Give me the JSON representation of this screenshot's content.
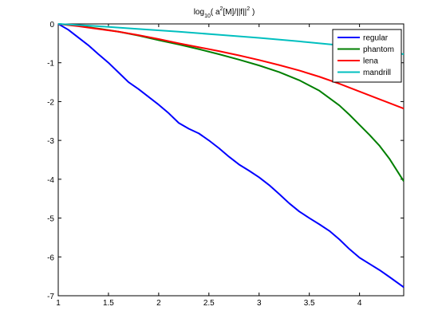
{
  "chart_data": {
    "type": "line",
    "title": {
      "prefix": "log",
      "log_base": "10",
      "body": "( a",
      "power": "2",
      "middle": "[M]/||f||",
      "power2": "2",
      "suffix": " )"
    },
    "xlabel": "",
    "ylabel": "",
    "xlim": [
      1,
      4.44
    ],
    "ylim": [
      -7,
      0
    ],
    "xticks": [
      1,
      1.5,
      2,
      2.5,
      3,
      3.5,
      4
    ],
    "xtick_labels": [
      "1",
      "1.5",
      "2",
      "2.5",
      "3",
      "3.5",
      "4"
    ],
    "yticks": [
      -7,
      -6,
      -5,
      -4,
      -3,
      -2,
      -1,
      0
    ],
    "ytick_labels": [
      "-7",
      "-6",
      "-5",
      "-4",
      "-3",
      "-2",
      "-1",
      "0"
    ],
    "grid": false,
    "legend_position": "top-right",
    "series": [
      {
        "name": "regular",
        "color": "#0000ff",
        "x": [
          1.0,
          1.1,
          1.2,
          1.3,
          1.4,
          1.5,
          1.6,
          1.7,
          1.8,
          1.9,
          2.0,
          2.1,
          2.2,
          2.3,
          2.4,
          2.5,
          2.6,
          2.7,
          2.8,
          2.9,
          3.0,
          3.1,
          3.2,
          3.3,
          3.4,
          3.5,
          3.6,
          3.7,
          3.8,
          3.9,
          4.0,
          4.1,
          4.2,
          4.3,
          4.44
        ],
        "y": [
          0.0,
          -0.15,
          -0.35,
          -0.55,
          -0.78,
          -1.0,
          -1.25,
          -1.5,
          -1.68,
          -1.88,
          -2.08,
          -2.3,
          -2.55,
          -2.7,
          -2.82,
          -3.0,
          -3.2,
          -3.42,
          -3.62,
          -3.78,
          -3.95,
          -4.15,
          -4.38,
          -4.62,
          -4.83,
          -5.0,
          -5.16,
          -5.33,
          -5.55,
          -5.8,
          -6.02,
          -6.18,
          -6.34,
          -6.52,
          -6.78
        ]
      },
      {
        "name": "phantom",
        "color": "#007f00",
        "x": [
          1.0,
          1.2,
          1.4,
          1.6,
          1.8,
          2.0,
          2.2,
          2.4,
          2.6,
          2.8,
          3.0,
          3.2,
          3.4,
          3.6,
          3.8,
          3.9,
          4.0,
          4.1,
          4.2,
          4.3,
          4.44
        ],
        "y": [
          0.0,
          -0.05,
          -0.12,
          -0.2,
          -0.3,
          -0.42,
          -0.53,
          -0.65,
          -0.78,
          -0.92,
          -1.07,
          -1.24,
          -1.45,
          -1.72,
          -2.1,
          -2.34,
          -2.6,
          -2.86,
          -3.14,
          -3.48,
          -4.05
        ]
      },
      {
        "name": "lena",
        "color": "#ff0000",
        "x": [
          1.0,
          1.2,
          1.4,
          1.6,
          1.8,
          2.0,
          2.2,
          2.4,
          2.6,
          2.8,
          3.0,
          3.2,
          3.4,
          3.6,
          3.8,
          4.0,
          4.2,
          4.44
        ],
        "y": [
          0.0,
          -0.06,
          -0.13,
          -0.2,
          -0.29,
          -0.39,
          -0.5,
          -0.6,
          -0.7,
          -0.81,
          -0.93,
          -1.06,
          -1.2,
          -1.36,
          -1.54,
          -1.74,
          -1.94,
          -2.18
        ]
      },
      {
        "name": "mandrill",
        "color": "#00bfbf",
        "x": [
          1.0,
          1.4,
          1.8,
          2.2,
          2.6,
          3.0,
          3.4,
          3.8,
          4.0,
          4.2,
          4.44
        ],
        "y": [
          0.0,
          -0.06,
          -0.13,
          -0.2,
          -0.28,
          -0.36,
          -0.45,
          -0.55,
          -0.61,
          -0.68,
          -0.78
        ]
      }
    ]
  }
}
